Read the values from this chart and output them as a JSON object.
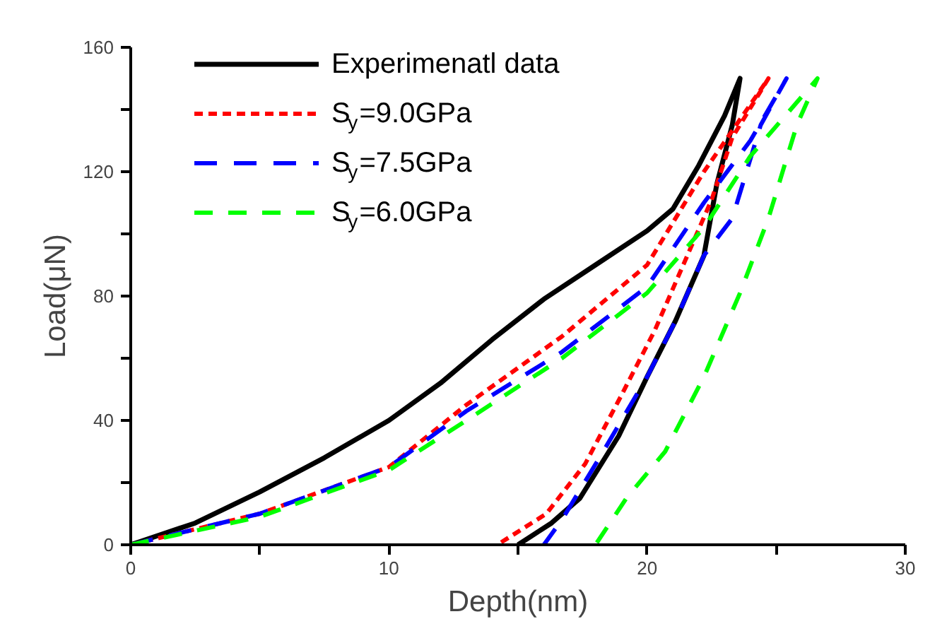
{
  "chart_data": {
    "type": "line",
    "xlabel": "Depth(nm)",
    "ylabel": "Load(μN)",
    "xlim": [
      0,
      30
    ],
    "ylim": [
      0,
      160
    ],
    "xticks": [
      0,
      {
        "value": 5,
        "label": null
      },
      10,
      {
        "value": 15,
        "label": null
      },
      20,
      {
        "value": 25,
        "label": null
      },
      30
    ],
    "yticks": [
      0,
      {
        "value": 20,
        "label": null
      },
      40,
      {
        "value": 60,
        "label": null
      },
      80,
      {
        "value": 100,
        "label": null
      },
      120,
      {
        "value": 140,
        "label": null
      },
      160
    ],
    "grid": false,
    "legend": "top left",
    "marker": "none",
    "series": [
      {
        "name": "Experimenatl data",
        "color": "#000000",
        "line_style": "solid",
        "x": [
          0,
          2.5,
          5,
          7.5,
          10,
          12,
          14,
          16,
          18,
          20,
          21,
          22,
          23,
          23.6,
          23.3,
          22.7,
          22.2,
          21.1,
          20,
          18.9,
          17.4,
          16.3,
          15
        ],
        "values": [
          0,
          7,
          17,
          28,
          40,
          52,
          66,
          79,
          90,
          101,
          108,
          122,
          138,
          150,
          135,
          116,
          93,
          72,
          54,
          35,
          15,
          7,
          0
        ]
      },
      {
        "name": "S$_{y}$=9.0GPa",
        "color": "#ff0000",
        "line_style": "dotted",
        "x": [
          0,
          5,
          10,
          13,
          16.7,
          20,
          22.2,
          24.7,
          23.3,
          22.5,
          21.4,
          20.3,
          19,
          17.6,
          16.1,
          14.2
        ],
        "values": [
          0,
          10,
          25,
          45,
          67,
          90,
          120,
          150,
          131,
          111,
          90,
          69,
          48,
          26,
          10,
          0
        ]
      },
      {
        "name": "S$_{y}$=7.5GPa",
        "color": "#0000ff",
        "line_style": "dashed",
        "x": [
          0,
          5,
          10,
          13,
          16.7,
          20,
          22.2,
          24,
          25.4,
          24.4,
          23.3,
          22.2,
          21.1,
          20,
          18.3,
          16.7,
          16
        ],
        "values": [
          0,
          10,
          25,
          43,
          62,
          83,
          110,
          130,
          150,
          135,
          105,
          93,
          72,
          54,
          30,
          8,
          0
        ]
      },
      {
        "name": "S$_{y}$=6.0GPa",
        "color": "#00ff00",
        "line_style": "dashed",
        "x": [
          0,
          5,
          10,
          13,
          16.7,
          20,
          22.2,
          24,
          26.6,
          25.8,
          24.7,
          23.6,
          22.2,
          20.7,
          19.2,
          18
        ],
        "values": [
          0,
          9,
          24,
          40,
          60,
          81,
          102,
          125,
          150,
          135,
          105,
          81,
          54,
          30,
          15,
          0
        ]
      }
    ]
  }
}
